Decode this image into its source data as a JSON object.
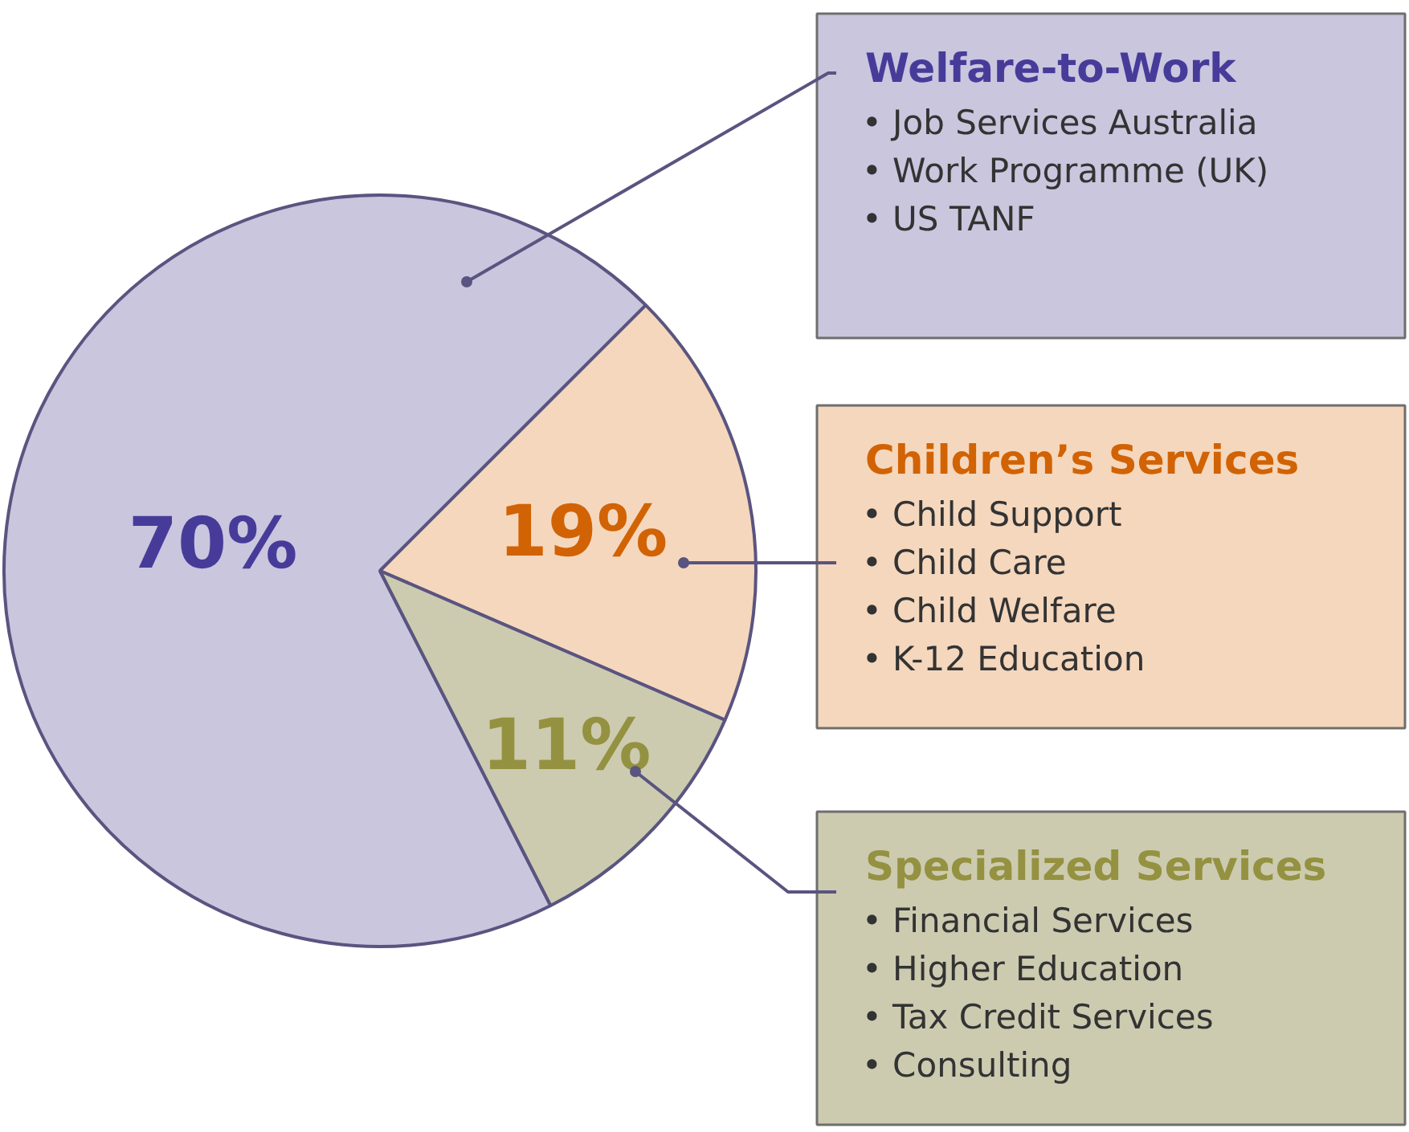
{
  "chart_data": {
    "type": "pie",
    "categories": [
      "Welfare-to-Work",
      "Children’s Services",
      "Specialized Services"
    ],
    "values": [
      70,
      19,
      11
    ],
    "colors": [
      "#c9c6de",
      "#f5d7bd",
      "#cccbb0"
    ],
    "value_labels": [
      "70%",
      "19%",
      "11%"
    ],
    "annotations": [
      "• Job Services Australia\n• Work Programme (UK)\n• US TANF",
      "• Child Support\n• Child Care\n• Child Welfare\n• K-12 Education",
      "• Financial Services\n• Higher Education\n• Tax Credit Services\n• Consulting"
    ]
  }
}
